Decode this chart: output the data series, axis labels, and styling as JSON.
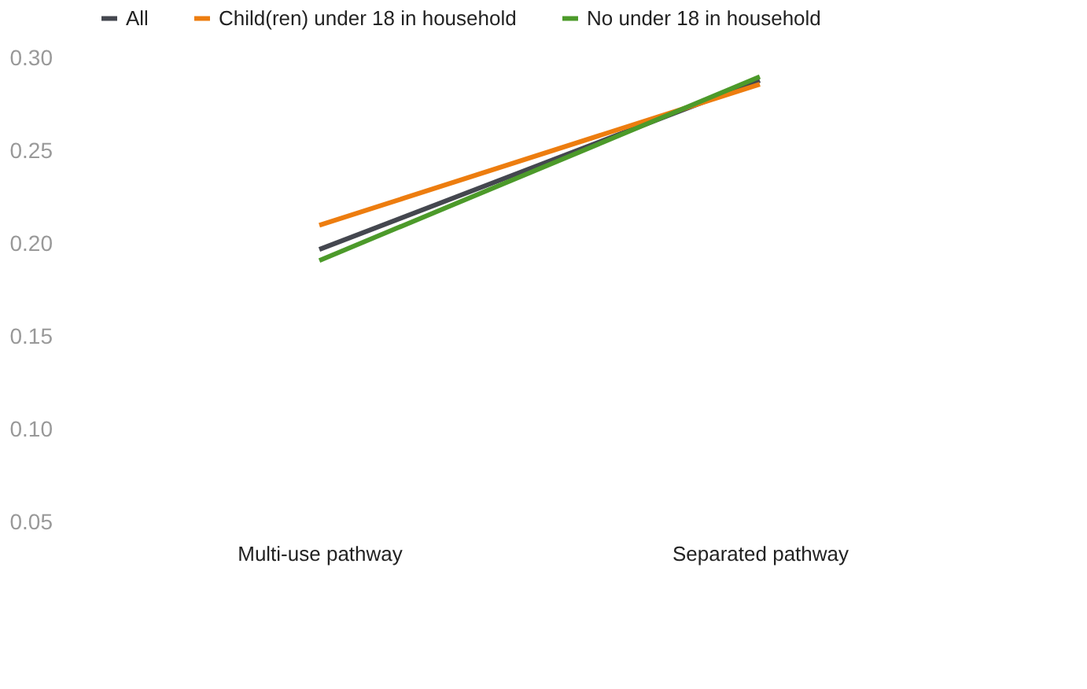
{
  "chart_data": {
    "type": "line",
    "categories": [
      "Multi-use pathway",
      "Separated pathway"
    ],
    "series": [
      {
        "name": "All",
        "color": "#44474f",
        "values": [
          0.197,
          0.288
        ]
      },
      {
        "name": "Child(ren) under 18 in household",
        "color": "#ed7d0f",
        "values": [
          0.21,
          0.286
        ]
      },
      {
        "name": "No under 18 in household",
        "color": "#4c9a2a",
        "values": [
          0.191,
          0.29
        ]
      }
    ],
    "ylim": [
      0.05,
      0.3
    ],
    "yticks": [
      0.05,
      {
        "value": 0.1,
        "label": "0.10"
      },
      0.15,
      {
        "value": 0.2,
        "label": "0.20"
      },
      0.25,
      {
        "value": 0.3,
        "label": "0.30"
      }
    ],
    "grid": false,
    "legend": "top",
    "marker": "none",
    "line_style": "solid"
  }
}
